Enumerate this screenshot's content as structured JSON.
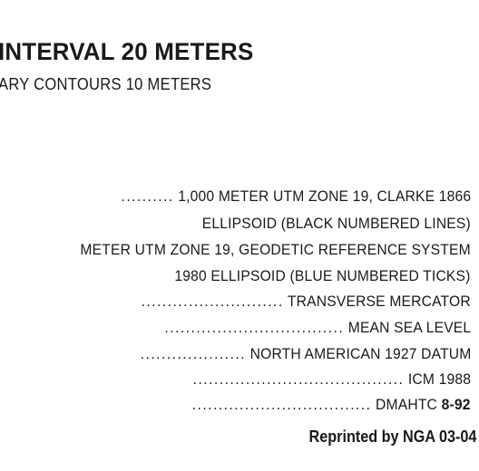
{
  "heading": {
    "title": "INTERVAL 20 METERS",
    "subtitle": "ARY CONTOURS 10 METERS"
  },
  "notes": [
    {
      "leader": "..........",
      "text": "1,000 METER UTM ZONE 19, CLARKE 1866"
    },
    {
      "leader": "",
      "text": "ELLIPSOID (BLACK NUMBERED LINES)"
    },
    {
      "leader": "",
      "text": "METER UTM ZONE 19, GEODETIC REFERENCE SYSTEM"
    },
    {
      "leader": "",
      "text": "1980 ELLIPSOID (BLUE NUMBERED TICKS)"
    },
    {
      "leader": "...........................",
      "text": "TRANSVERSE MERCATOR"
    },
    {
      "leader": "..................................",
      "text": "MEAN SEA LEVEL"
    },
    {
      "leader": "....................",
      "text": "NORTH AMERICAN 1927 DATUM"
    },
    {
      "leader": "........................................",
      "text": "ICM 1988"
    },
    {
      "leader": "..................................",
      "text": "DMAHTC",
      "extra": "8-92"
    }
  ],
  "credit": "Reprinted by NGA 03-04"
}
